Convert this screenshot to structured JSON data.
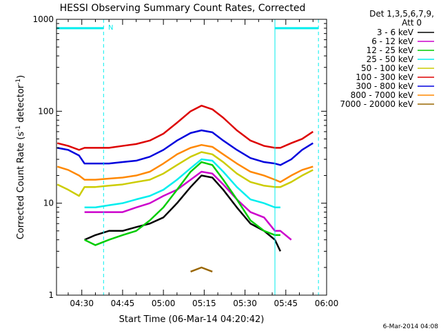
{
  "chart_data": {
    "type": "line",
    "title": "HESSI Observing Summary Count Rates, Corrected",
    "xlabel": "Start Time (06-Mar-14 04:20:42)",
    "ylabel": "Corrected Count Rate (s^-1 detector^-1)",
    "ylabel_parts": {
      "main": "Corrected Count Rate (s",
      "sup1": "-1",
      "mid": " detector",
      "sup2": "-1",
      "end": ")"
    },
    "y_scale": "log",
    "ylim": [
      1,
      1000
    ],
    "y_ticks": [
      {
        "value": 1,
        "label": "1"
      },
      {
        "value": 10,
        "label": "10"
      },
      {
        "value": 100,
        "label": "100"
      },
      {
        "value": 1000,
        "label": "1000"
      }
    ],
    "xlim": [
      "04:20:42",
      "06:00:00"
    ],
    "x_ticks": [
      "04:30",
      "04:45",
      "05:00",
      "05:15",
      "05:30",
      "05:45",
      "06:00"
    ],
    "x": [
      "04:21",
      "04:25",
      "04:29",
      "04:31",
      "04:35",
      "04:40",
      "04:45",
      "04:50",
      "04:55",
      "05:00",
      "05:05",
      "05:10",
      "05:14",
      "05:18",
      "05:22",
      "05:27",
      "05:32",
      "05:37",
      "05:41",
      "05:43",
      "05:47",
      "05:51",
      "05:55"
    ],
    "series": [
      {
        "name": "3 - 6 keV",
        "color": "#000000",
        "values": [
          null,
          null,
          null,
          4,
          4.5,
          5,
          5,
          5.5,
          6,
          7,
          10,
          15,
          20,
          19,
          14,
          9,
          6,
          5,
          4,
          3,
          null,
          null,
          null
        ]
      },
      {
        "name": "6 - 12 keV",
        "color": "#cc00cc",
        "values": [
          null,
          null,
          null,
          8,
          8,
          8,
          8,
          9,
          10,
          12,
          14,
          18,
          22,
          21,
          16,
          11,
          8,
          7,
          5,
          5,
          4,
          null,
          null
        ]
      },
      {
        "name": "12 - 25 keV",
        "color": "#00cc00",
        "values": [
          null,
          null,
          null,
          4,
          3.5,
          4,
          4.5,
          5,
          6.5,
          9,
          14,
          22,
          28,
          26,
          18,
          11,
          6.5,
          5,
          4.5,
          4.5,
          null,
          null,
          null
        ]
      },
      {
        "name": "25 - 50 keV",
        "color": "#00eeee",
        "values": [
          null,
          null,
          null,
          9,
          9,
          9.5,
          10,
          11,
          12,
          14,
          18,
          24,
          30,
          29,
          22,
          15,
          11,
          10,
          9,
          9,
          null,
          null,
          null
        ]
      },
      {
        "name": "50 - 100 keV",
        "color": "#cccc00",
        "values": [
          16,
          14,
          12,
          15,
          15,
          15.5,
          16,
          17,
          18,
          21,
          26,
          32,
          36,
          34,
          28,
          21,
          17,
          15.5,
          15,
          15,
          17,
          20,
          23
        ]
      },
      {
        "name": "100 - 300 keV",
        "color": "#dd0000",
        "values": [
          45,
          42,
          38,
          40,
          40,
          40,
          42,
          44,
          48,
          57,
          75,
          100,
          115,
          105,
          85,
          62,
          48,
          42,
          40,
          40,
          45,
          50,
          60
        ]
      },
      {
        "name": "300 - 800 keV",
        "color": "#0000dd",
        "values": [
          40,
          38,
          33,
          27,
          27,
          27,
          28,
          29,
          32,
          38,
          48,
          58,
          62,
          59,
          48,
          38,
          31,
          28,
          27,
          26,
          30,
          38,
          45
        ]
      },
      {
        "name": "800 - 7000 keV",
        "color": "#ff8800",
        "values": [
          25,
          23,
          20,
          18,
          18,
          18.5,
          19,
          20,
          22,
          27,
          34,
          40,
          43,
          41,
          34,
          27,
          22,
          20,
          18,
          17,
          20,
          23,
          25
        ]
      },
      {
        "name": "7000 - 20000 keV",
        "color": "#996600",
        "values": [
          null,
          null,
          null,
          null,
          null,
          null,
          null,
          null,
          null,
          null,
          null,
          1.8,
          2,
          1.8,
          null,
          null,
          null,
          null,
          null,
          null,
          null,
          null,
          null
        ]
      }
    ],
    "legend": {
      "position": "right",
      "header_line1": "Det 1,3,5,6,7,9,",
      "header_line2": "Att 0"
    },
    "annotations": {
      "night_label": "N",
      "timestamp": "6-Mar-2014 04:08"
    },
    "attenuator_markers": [
      {
        "kind": "cyan-bar",
        "start": "04:20:42",
        "end": "04:38",
        "level": 800
      },
      {
        "kind": "cyan-bar",
        "start": "05:41",
        "end": "05:57",
        "level": 800
      }
    ],
    "vertical_lines": [
      {
        "time": "04:38",
        "color": "#00eeee",
        "style": "dashed"
      },
      {
        "time": "05:41",
        "color": "#00eeee",
        "style": "solid"
      },
      {
        "time": "05:57",
        "color": "#00eeee",
        "style": "dashed"
      }
    ],
    "colors": {
      "background": "#ffffff",
      "axes": "#000000",
      "markers": "#00eeee"
    }
  }
}
